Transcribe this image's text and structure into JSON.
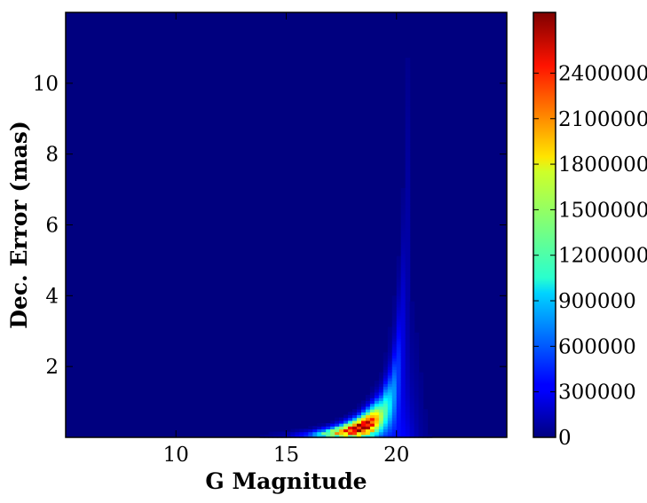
{
  "chart_data": {
    "type": "heatmap",
    "title": "",
    "xlabel": "G Magnitude",
    "ylabel": "Dec. Error (mas)",
    "xlim": [
      5,
      25
    ],
    "ylim": [
      0,
      12
    ],
    "xticks": [
      10,
      15,
      20
    ],
    "yticks": [
      2,
      4,
      6,
      8,
      10
    ],
    "colormap": "jet",
    "colorbar": {
      "range": [
        0,
        2800000
      ],
      "ticks": [
        0,
        300000,
        600000,
        900000,
        1200000,
        1500000,
        1800000,
        2100000,
        2400000
      ]
    },
    "grid": false,
    "ridge_points": [
      {
        "x": 12.0,
        "y": 0.02,
        "count": 2000
      },
      {
        "x": 13.0,
        "y": 0.02,
        "count": 10000
      },
      {
        "x": 14.0,
        "y": 0.03,
        "count": 40000
      },
      {
        "x": 15.0,
        "y": 0.04,
        "count": 120000
      },
      {
        "x": 16.0,
        "y": 0.06,
        "count": 500000
      },
      {
        "x": 16.8,
        "y": 0.1,
        "count": 1300000
      },
      {
        "x": 17.5,
        "y": 0.16,
        "count": 2000000
      },
      {
        "x": 18.2,
        "y": 0.25,
        "count": 2700000
      },
      {
        "x": 18.8,
        "y": 0.4,
        "count": 2500000
      },
      {
        "x": 19.3,
        "y": 0.6,
        "count": 1500000
      },
      {
        "x": 19.7,
        "y": 0.95,
        "count": 900000
      },
      {
        "x": 20.0,
        "y": 1.5,
        "count": 500000
      },
      {
        "x": 20.2,
        "y": 2.5,
        "count": 250000
      },
      {
        "x": 20.4,
        "y": 4.0,
        "count": 120000
      },
      {
        "x": 20.6,
        "y": 8.0,
        "count": 50000
      }
    ]
  }
}
